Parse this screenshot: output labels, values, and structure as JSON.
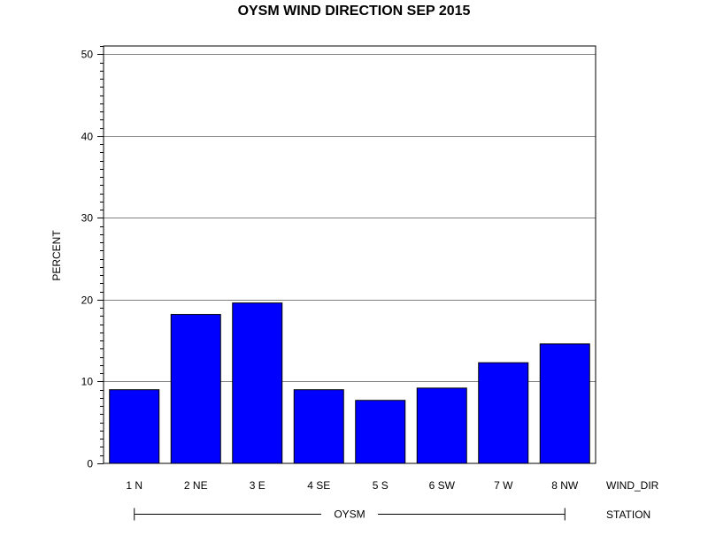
{
  "chart_data": {
    "type": "bar",
    "title": "OYSM WIND DIRECTION SEP 2015",
    "ylabel": "PERCENT",
    "xlabel": "WIND_DIR",
    "group_axis_label": "STATION",
    "group_name": "OYSM",
    "categories": [
      "1 N",
      "2 NE",
      "3 E",
      "4 SE",
      "5 S",
      "6 SW",
      "7 W",
      "8 NW"
    ],
    "values": [
      9.0,
      18.2,
      19.6,
      9.0,
      7.7,
      9.2,
      12.3,
      14.6
    ],
    "ylim": [
      0,
      51
    ],
    "yticks": [
      0,
      10,
      20,
      30,
      40,
      50
    ],
    "grid": true,
    "bar_color": "#0000ff",
    "legend": "none"
  }
}
